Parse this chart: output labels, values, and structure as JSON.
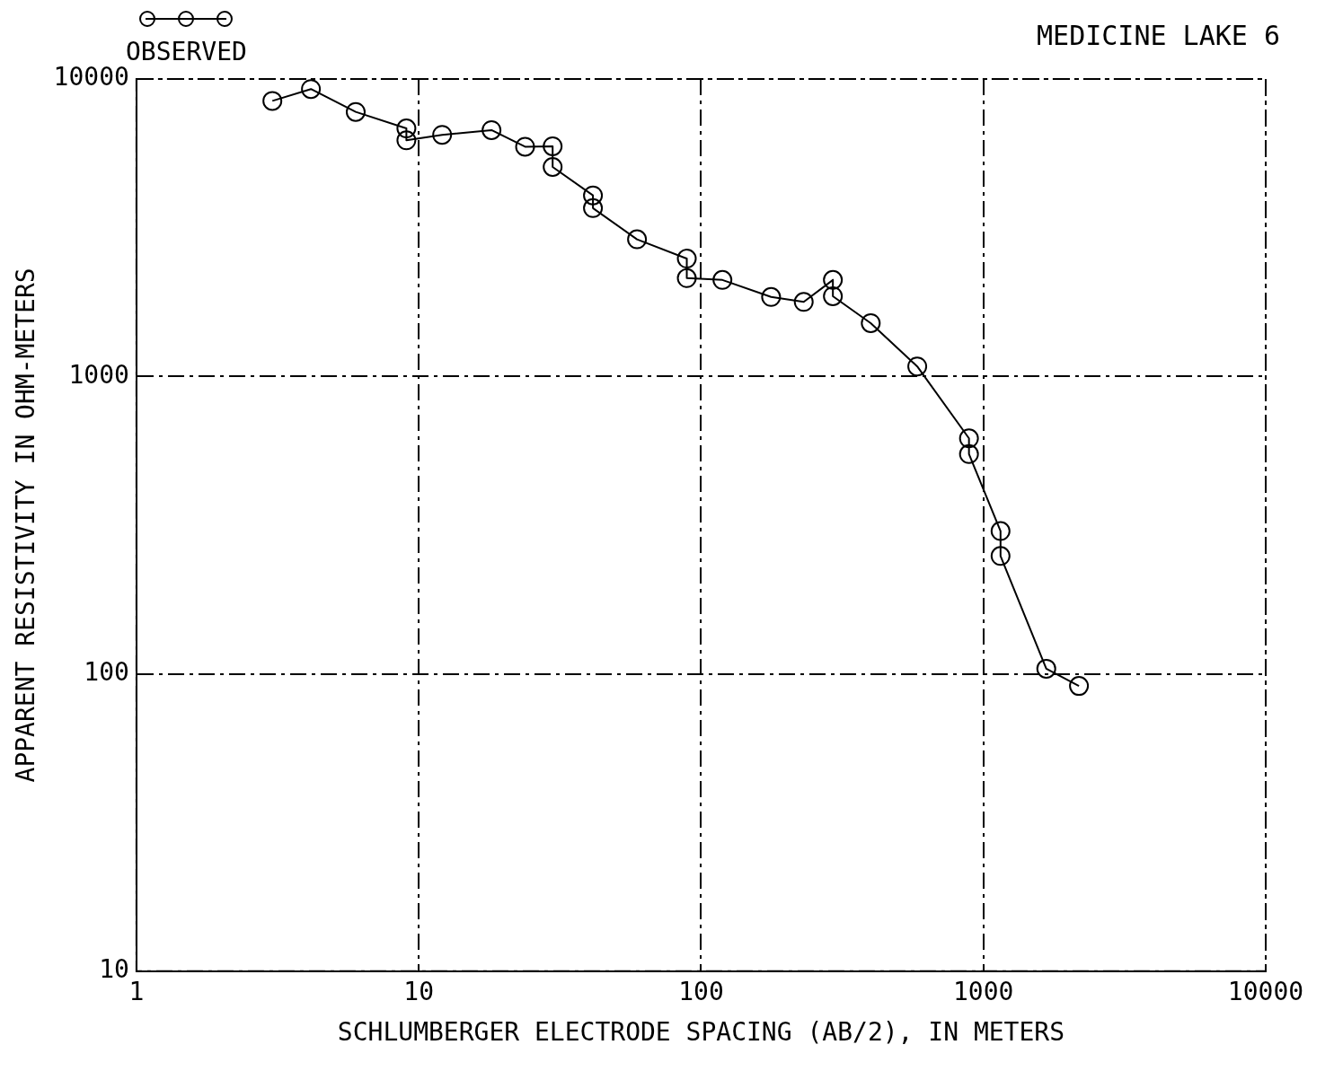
{
  "chart_data": {
    "type": "line",
    "title": "MEDICINE LAKE 6",
    "xlabel": "SCHLUMBERGER ELECTRODE SPACING (AB/2), IN METERS",
    "ylabel": "APPARENT RESISTIVITY IN OHM-METERS",
    "log": "xy",
    "xlim": [
      1,
      10000
    ],
    "xticks": [
      1,
      10,
      100,
      1000,
      10000
    ],
    "ylim": [
      10,
      10000
    ],
    "yticks": [
      10,
      100,
      1000,
      10000
    ],
    "grid": true,
    "legend": "top left",
    "marker": "circle",
    "line_style": "solid",
    "series": [
      {
        "name": "OBSERVED",
        "color": "#000000",
        "x": [
          3.03,
          4.15,
          5.98,
          9.04,
          9.04,
          12.1,
          18.1,
          23.8,
          29.8,
          29.8,
          41.4,
          41.4,
          59.3,
          89,
          89,
          119,
          177,
          231,
          293,
          293,
          399,
          583,
          889,
          889,
          1150,
          1150,
          1670,
          2180
        ],
        "values": [
          8440,
          9250,
          7750,
          6820,
          6220,
          6490,
          6730,
          5920,
          5940,
          5060,
          4060,
          3680,
          2890,
          2490,
          2140,
          2110,
          1850,
          1780,
          2110,
          1860,
          1510,
          1080,
          619,
          548,
          302,
          249,
          104,
          91
        ]
      }
    ]
  }
}
